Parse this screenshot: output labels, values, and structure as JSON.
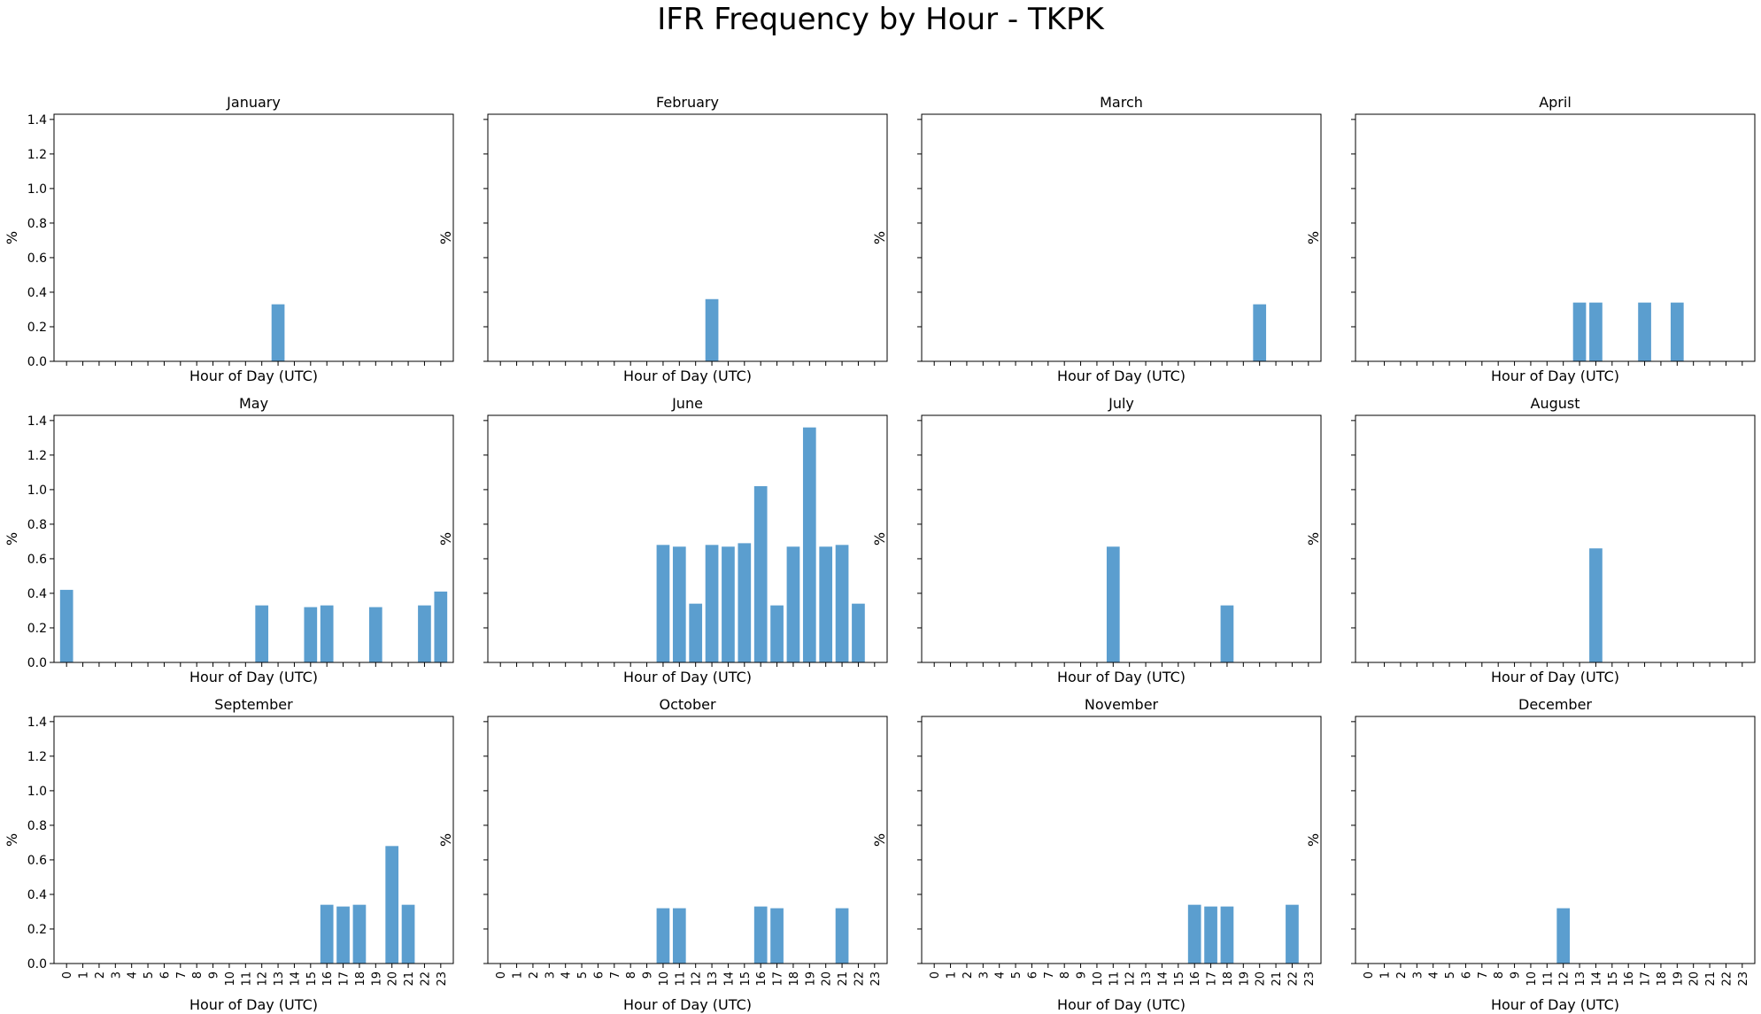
{
  "title": "IFR Frequency by Hour - TKPK",
  "colors": {
    "bar": "#5b9ecf",
    "axis": "#000000"
  },
  "chart_data": [
    {
      "type": "bar",
      "title": "January",
      "xlabel": "Hour of Day (UTC)",
      "ylabel": "%",
      "ylim": [
        0,
        1.43
      ],
      "yticks": [
        "0.0",
        "0.2",
        "0.4",
        "0.6",
        "0.8",
        "1.0",
        "1.2",
        "1.4"
      ],
      "categories": [
        "0",
        "1",
        "2",
        "3",
        "4",
        "5",
        "6",
        "7",
        "8",
        "9",
        "10",
        "11",
        "12",
        "13",
        "14",
        "15",
        "16",
        "17",
        "18",
        "19",
        "20",
        "21",
        "22",
        "23"
      ],
      "show_xticklabels": false,
      "show_yticklabels": true,
      "values": [
        0,
        0,
        0,
        0,
        0,
        0,
        0,
        0,
        0,
        0,
        0,
        0,
        0,
        0.33,
        0,
        0,
        0,
        0,
        0,
        0,
        0,
        0,
        0,
        0
      ]
    },
    {
      "type": "bar",
      "title": "February",
      "xlabel": "Hour of Day (UTC)",
      "ylabel": "%",
      "ylim": [
        0,
        1.43
      ],
      "yticks": [
        "0.0",
        "0.2",
        "0.4",
        "0.6",
        "0.8",
        "1.0",
        "1.2",
        "1.4"
      ],
      "categories": [
        "0",
        "1",
        "2",
        "3",
        "4",
        "5",
        "6",
        "7",
        "8",
        "9",
        "10",
        "11",
        "12",
        "13",
        "14",
        "15",
        "16",
        "17",
        "18",
        "19",
        "20",
        "21",
        "22",
        "23"
      ],
      "show_xticklabels": false,
      "show_yticklabels": false,
      "values": [
        0,
        0,
        0,
        0,
        0,
        0,
        0,
        0,
        0,
        0,
        0,
        0,
        0,
        0.36,
        0,
        0,
        0,
        0,
        0,
        0,
        0,
        0,
        0,
        0
      ]
    },
    {
      "type": "bar",
      "title": "March",
      "xlabel": "Hour of Day (UTC)",
      "ylabel": "%",
      "ylim": [
        0,
        1.43
      ],
      "yticks": [
        "0.0",
        "0.2",
        "0.4",
        "0.6",
        "0.8",
        "1.0",
        "1.2",
        "1.4"
      ],
      "categories": [
        "0",
        "1",
        "2",
        "3",
        "4",
        "5",
        "6",
        "7",
        "8",
        "9",
        "10",
        "11",
        "12",
        "13",
        "14",
        "15",
        "16",
        "17",
        "18",
        "19",
        "20",
        "21",
        "22",
        "23"
      ],
      "show_xticklabels": false,
      "show_yticklabels": false,
      "values": [
        0,
        0,
        0,
        0,
        0,
        0,
        0,
        0,
        0,
        0,
        0,
        0,
        0,
        0,
        0,
        0,
        0,
        0,
        0,
        0,
        0.33,
        0,
        0,
        0
      ]
    },
    {
      "type": "bar",
      "title": "April",
      "xlabel": "Hour of Day (UTC)",
      "ylabel": "%",
      "ylim": [
        0,
        1.43
      ],
      "yticks": [
        "0.0",
        "0.2",
        "0.4",
        "0.6",
        "0.8",
        "1.0",
        "1.2",
        "1.4"
      ],
      "categories": [
        "0",
        "1",
        "2",
        "3",
        "4",
        "5",
        "6",
        "7",
        "8",
        "9",
        "10",
        "11",
        "12",
        "13",
        "14",
        "15",
        "16",
        "17",
        "18",
        "19",
        "20",
        "21",
        "22",
        "23"
      ],
      "show_xticklabels": false,
      "show_yticklabels": false,
      "values": [
        0,
        0,
        0,
        0,
        0,
        0,
        0,
        0,
        0,
        0,
        0,
        0,
        0,
        0.34,
        0.34,
        0,
        0,
        0.34,
        0,
        0.34,
        0,
        0,
        0,
        0
      ]
    },
    {
      "type": "bar",
      "title": "May",
      "xlabel": "Hour of Day (UTC)",
      "ylabel": "%",
      "ylim": [
        0,
        1.43
      ],
      "yticks": [
        "0.0",
        "0.2",
        "0.4",
        "0.6",
        "0.8",
        "1.0",
        "1.2",
        "1.4"
      ],
      "categories": [
        "0",
        "1",
        "2",
        "3",
        "4",
        "5",
        "6",
        "7",
        "8",
        "9",
        "10",
        "11",
        "12",
        "13",
        "14",
        "15",
        "16",
        "17",
        "18",
        "19",
        "20",
        "21",
        "22",
        "23"
      ],
      "show_xticklabels": false,
      "show_yticklabels": true,
      "values": [
        0.42,
        0,
        0,
        0,
        0,
        0,
        0,
        0,
        0,
        0,
        0,
        0,
        0.33,
        0,
        0,
        0.32,
        0.33,
        0,
        0,
        0.32,
        0,
        0,
        0.33,
        0.41
      ]
    },
    {
      "type": "bar",
      "title": "June",
      "xlabel": "Hour of Day (UTC)",
      "ylabel": "%",
      "ylim": [
        0,
        1.43
      ],
      "yticks": [
        "0.0",
        "0.2",
        "0.4",
        "0.6",
        "0.8",
        "1.0",
        "1.2",
        "1.4"
      ],
      "categories": [
        "0",
        "1",
        "2",
        "3",
        "4",
        "5",
        "6",
        "7",
        "8",
        "9",
        "10",
        "11",
        "12",
        "13",
        "14",
        "15",
        "16",
        "17",
        "18",
        "19",
        "20",
        "21",
        "22",
        "23"
      ],
      "show_xticklabels": false,
      "show_yticklabels": false,
      "values": [
        0,
        0,
        0,
        0,
        0,
        0,
        0,
        0,
        0,
        0,
        0.68,
        0.67,
        0.34,
        0.68,
        0.67,
        0.69,
        1.02,
        0.33,
        0.67,
        1.36,
        0.67,
        0.68,
        0.34,
        0
      ]
    },
    {
      "type": "bar",
      "title": "July",
      "xlabel": "Hour of Day (UTC)",
      "ylabel": "%",
      "ylim": [
        0,
        1.43
      ],
      "yticks": [
        "0.0",
        "0.2",
        "0.4",
        "0.6",
        "0.8",
        "1.0",
        "1.2",
        "1.4"
      ],
      "categories": [
        "0",
        "1",
        "2",
        "3",
        "4",
        "5",
        "6",
        "7",
        "8",
        "9",
        "10",
        "11",
        "12",
        "13",
        "14",
        "15",
        "16",
        "17",
        "18",
        "19",
        "20",
        "21",
        "22",
        "23"
      ],
      "show_xticklabels": false,
      "show_yticklabels": false,
      "values": [
        0,
        0,
        0,
        0,
        0,
        0,
        0,
        0,
        0,
        0,
        0,
        0.67,
        0,
        0,
        0,
        0,
        0,
        0,
        0.33,
        0,
        0,
        0,
        0,
        0
      ]
    },
    {
      "type": "bar",
      "title": "August",
      "xlabel": "Hour of Day (UTC)",
      "ylabel": "%",
      "ylim": [
        0,
        1.43
      ],
      "yticks": [
        "0.0",
        "0.2",
        "0.4",
        "0.6",
        "0.8",
        "1.0",
        "1.2",
        "1.4"
      ],
      "categories": [
        "0",
        "1",
        "2",
        "3",
        "4",
        "5",
        "6",
        "7",
        "8",
        "9",
        "10",
        "11",
        "12",
        "13",
        "14",
        "15",
        "16",
        "17",
        "18",
        "19",
        "20",
        "21",
        "22",
        "23"
      ],
      "show_xticklabels": false,
      "show_yticklabels": false,
      "values": [
        0,
        0,
        0,
        0,
        0,
        0,
        0,
        0,
        0,
        0,
        0,
        0,
        0,
        0,
        0.66,
        0,
        0,
        0,
        0,
        0,
        0,
        0,
        0,
        0
      ]
    },
    {
      "type": "bar",
      "title": "September",
      "xlabel": "Hour of Day (UTC)",
      "ylabel": "%",
      "ylim": [
        0,
        1.43
      ],
      "yticks": [
        "0.0",
        "0.2",
        "0.4",
        "0.6",
        "0.8",
        "1.0",
        "1.2",
        "1.4"
      ],
      "categories": [
        "0",
        "1",
        "2",
        "3",
        "4",
        "5",
        "6",
        "7",
        "8",
        "9",
        "10",
        "11",
        "12",
        "13",
        "14",
        "15",
        "16",
        "17",
        "18",
        "19",
        "20",
        "21",
        "22",
        "23"
      ],
      "show_xticklabels": true,
      "show_yticklabels": true,
      "values": [
        0,
        0,
        0,
        0,
        0,
        0,
        0,
        0,
        0,
        0,
        0,
        0,
        0,
        0,
        0,
        0,
        0.34,
        0.33,
        0.34,
        0,
        0.68,
        0.34,
        0,
        0
      ]
    },
    {
      "type": "bar",
      "title": "October",
      "xlabel": "Hour of Day (UTC)",
      "ylabel": "%",
      "ylim": [
        0,
        1.43
      ],
      "yticks": [
        "0.0",
        "0.2",
        "0.4",
        "0.6",
        "0.8",
        "1.0",
        "1.2",
        "1.4"
      ],
      "categories": [
        "0",
        "1",
        "2",
        "3",
        "4",
        "5",
        "6",
        "7",
        "8",
        "9",
        "10",
        "11",
        "12",
        "13",
        "14",
        "15",
        "16",
        "17",
        "18",
        "19",
        "20",
        "21",
        "22",
        "23"
      ],
      "show_xticklabels": true,
      "show_yticklabels": false,
      "values": [
        0,
        0,
        0,
        0,
        0,
        0,
        0,
        0,
        0,
        0,
        0.32,
        0.32,
        0,
        0,
        0,
        0,
        0.33,
        0.32,
        0,
        0,
        0,
        0.32,
        0,
        0
      ]
    },
    {
      "type": "bar",
      "title": "November",
      "xlabel": "Hour of Day (UTC)",
      "ylabel": "%",
      "ylim": [
        0,
        1.43
      ],
      "yticks": [
        "0.0",
        "0.2",
        "0.4",
        "0.6",
        "0.8",
        "1.0",
        "1.2",
        "1.4"
      ],
      "categories": [
        "0",
        "1",
        "2",
        "3",
        "4",
        "5",
        "6",
        "7",
        "8",
        "9",
        "10",
        "11",
        "12",
        "13",
        "14",
        "15",
        "16",
        "17",
        "18",
        "19",
        "20",
        "21",
        "22",
        "23"
      ],
      "show_xticklabels": true,
      "show_yticklabels": false,
      "values": [
        0,
        0,
        0,
        0,
        0,
        0,
        0,
        0,
        0,
        0,
        0,
        0,
        0,
        0,
        0,
        0,
        0.34,
        0.33,
        0.33,
        0,
        0,
        0,
        0.34,
        0
      ]
    },
    {
      "type": "bar",
      "title": "December",
      "xlabel": "Hour of Day (UTC)",
      "ylabel": "%",
      "ylim": [
        0,
        1.43
      ],
      "yticks": [
        "0.0",
        "0.2",
        "0.4",
        "0.6",
        "0.8",
        "1.0",
        "1.2",
        "1.4"
      ],
      "categories": [
        "0",
        "1",
        "2",
        "3",
        "4",
        "5",
        "6",
        "7",
        "8",
        "9",
        "10",
        "11",
        "12",
        "13",
        "14",
        "15",
        "16",
        "17",
        "18",
        "19",
        "20",
        "21",
        "22",
        "23"
      ],
      "show_xticklabels": true,
      "show_yticklabels": false,
      "values": [
        0,
        0,
        0,
        0,
        0,
        0,
        0,
        0,
        0,
        0,
        0,
        0,
        0.32,
        0,
        0,
        0,
        0,
        0,
        0,
        0,
        0,
        0,
        0,
        0
      ]
    }
  ]
}
